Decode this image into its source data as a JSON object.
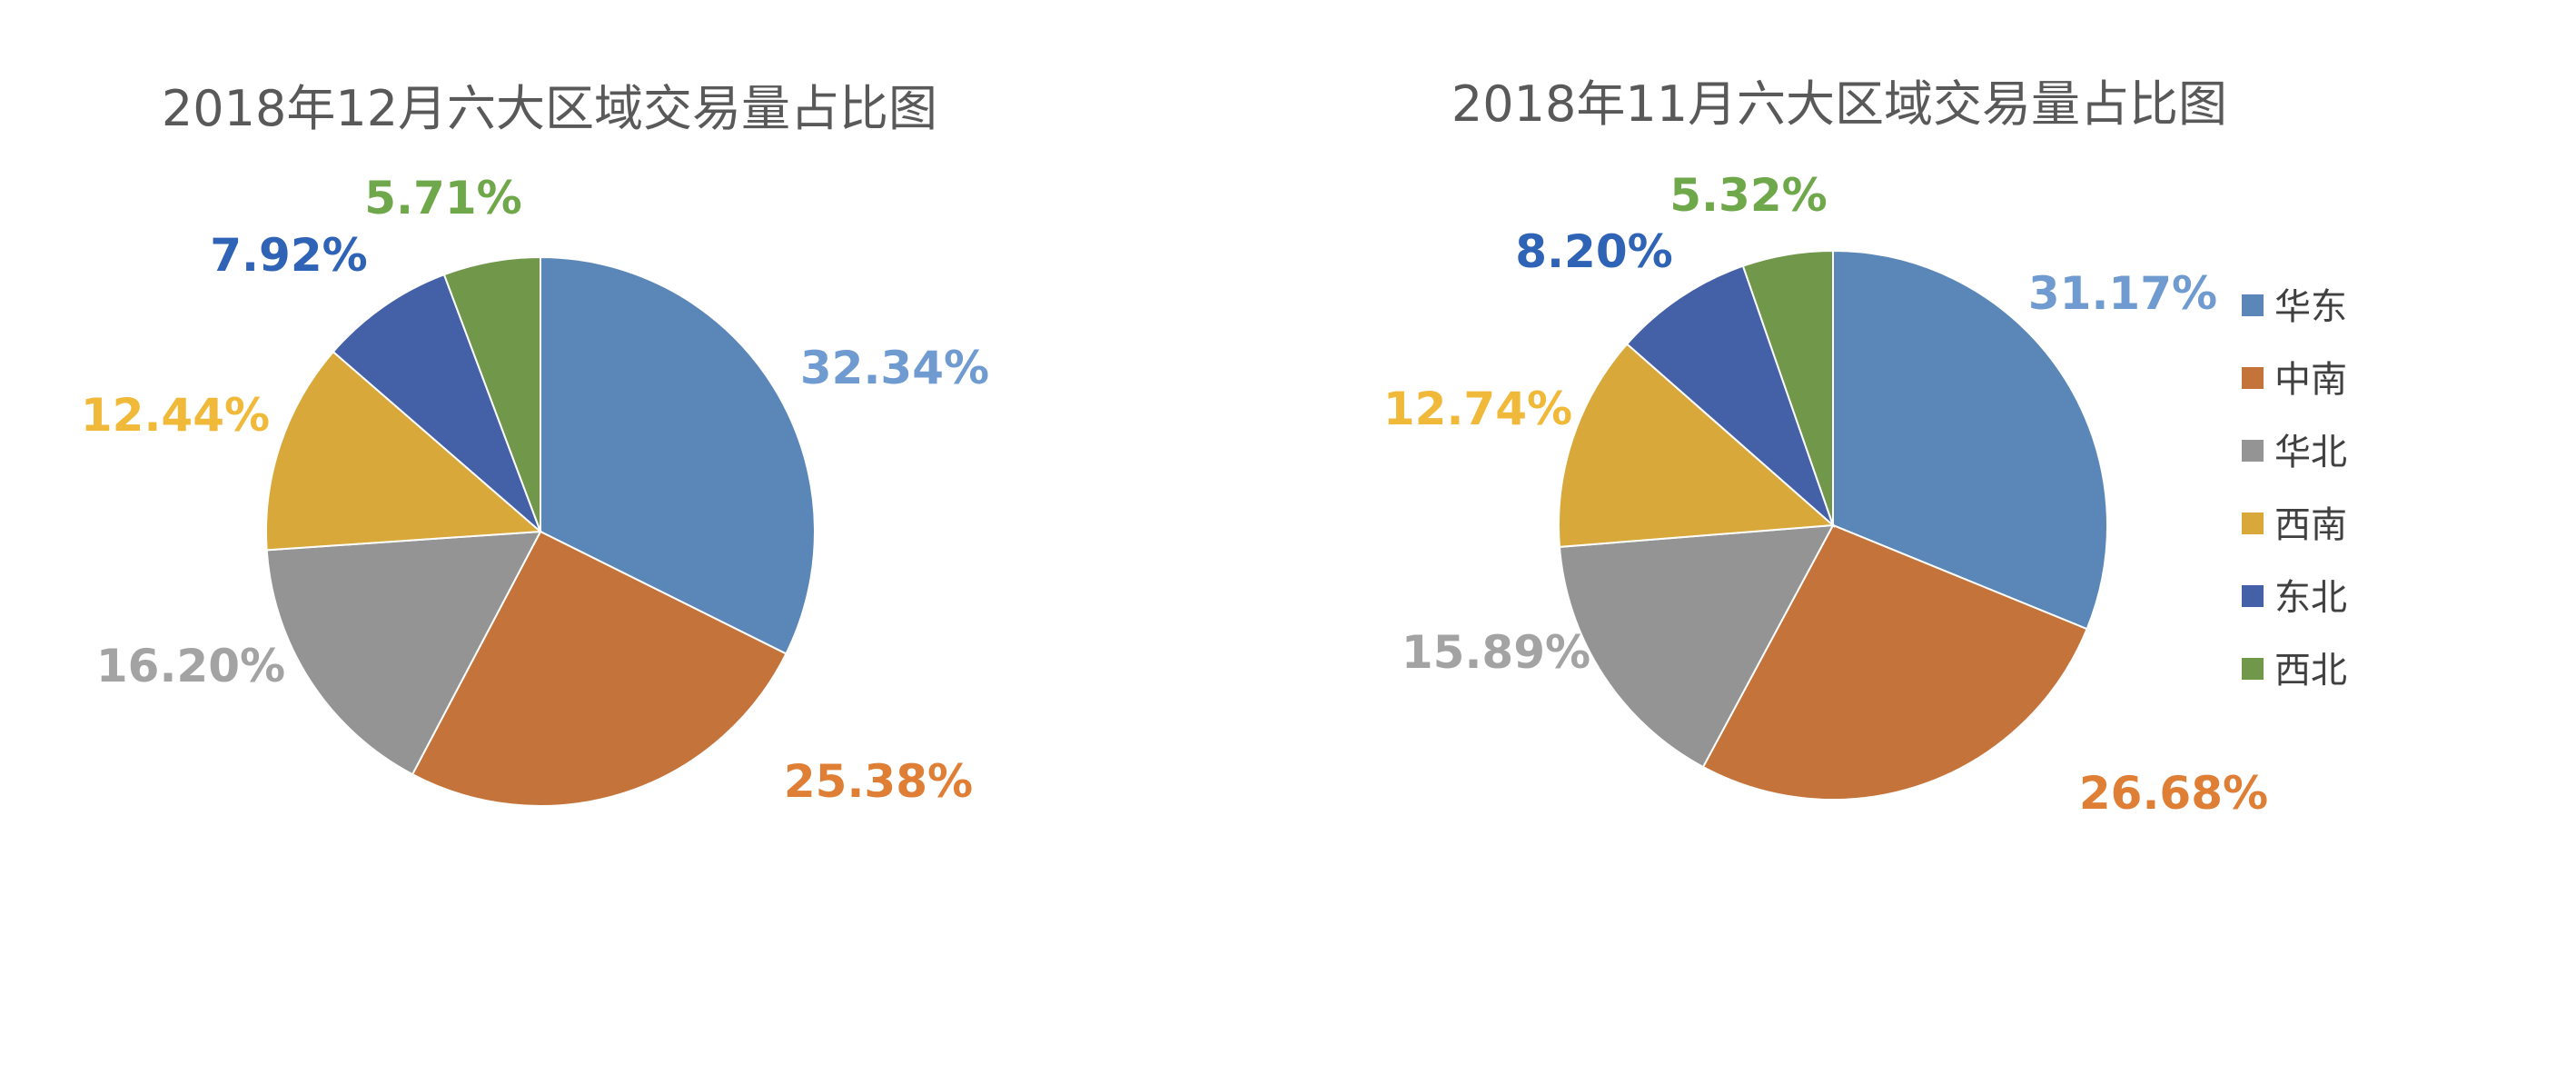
{
  "colors": {
    "华东": "#5b87b8",
    "中南": "#c4733a",
    "华北": "#949494",
    "西南": "#d8a83a",
    "东北": "#4461a8",
    "西北": "#70974a"
  },
  "label_colors": {
    "华东": "#6f9bd0",
    "中南": "#df7f36",
    "华北": "#a3a3a3",
    "西南": "#f0b93a",
    "东北": "#2f63b5",
    "西北": "#6fa84a"
  },
  "chart_data": [
    {
      "type": "pie",
      "title": "2018年12月六大区域交易量占比图",
      "categories": [
        "华东",
        "中南",
        "华北",
        "西南",
        "东北",
        "西北"
      ],
      "values": [
        32.34,
        25.38,
        16.2,
        12.44,
        7.92,
        5.71
      ],
      "labels": [
        "32.34%",
        "25.38%",
        "16.20%",
        "12.44%",
        "7.92%",
        "5.71%"
      ]
    },
    {
      "type": "pie",
      "title": "2018年11月六大区域交易量占比图",
      "categories": [
        "华东",
        "中南",
        "华北",
        "西南",
        "东北",
        "西北"
      ],
      "values": [
        31.17,
        26.68,
        15.89,
        12.74,
        8.2,
        5.32
      ],
      "labels": [
        "31.17%",
        "26.68%",
        "15.89%",
        "12.74%",
        "8.20%",
        "5.32%"
      ]
    }
  ],
  "legend": {
    "items": [
      "华东",
      "中南",
      "华北",
      "西南",
      "东北",
      "西北"
    ]
  }
}
